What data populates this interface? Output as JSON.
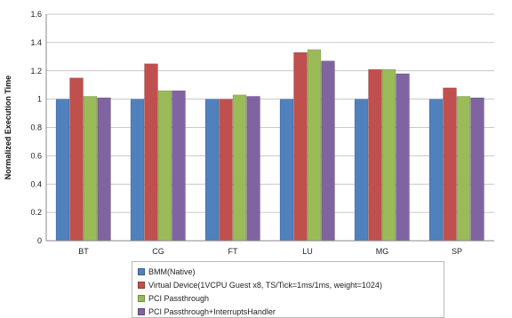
{
  "chart_data": {
    "type": "bar",
    "ylabel": "Normalized Execution Time",
    "ylim": [
      0,
      1.6
    ],
    "yticks": [
      "0",
      "0.2",
      "0.4",
      "0.6",
      "0.8",
      "1",
      "1.2",
      "1.4",
      "1.6"
    ],
    "grid": true,
    "legend_position": "bottom",
    "categories": [
      "BT",
      "CG",
      "FT",
      "LU",
      "MG",
      "SP"
    ],
    "series": [
      {
        "name": "BMM(Native)",
        "color": "#4f81bd",
        "values": [
          1.0,
          1.0,
          1.0,
          1.0,
          1.0,
          1.0
        ]
      },
      {
        "name": "Virtual Device(1VCPU Guest x8, TS/Tick=1ms/1ms, weight=1024)",
        "color": "#c0504d",
        "values": [
          1.15,
          1.25,
          1.0,
          1.33,
          1.21,
          1.08
        ]
      },
      {
        "name": "PCI Passthrough",
        "color": "#9bbb59",
        "values": [
          1.02,
          1.06,
          1.03,
          1.35,
          1.21,
          1.02
        ]
      },
      {
        "name": "PCI Passthrough+InterruptsHandler",
        "color": "#8064a2",
        "values": [
          1.01,
          1.06,
          1.02,
          1.27,
          1.18,
          1.01
        ]
      }
    ]
  }
}
